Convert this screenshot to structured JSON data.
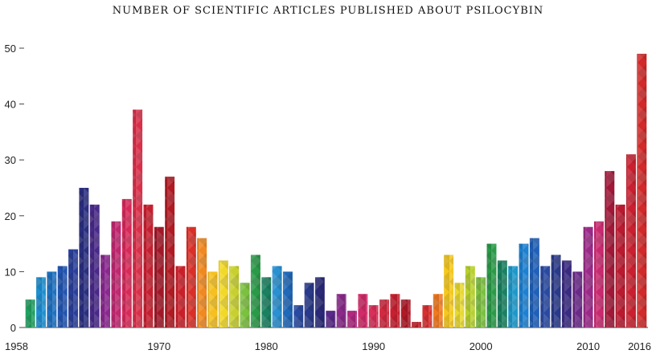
{
  "chart_data": {
    "type": "bar",
    "title": "NUMBER OF SCIENTIFIC ARTICLES PUBLISHED ABOUT PSILOCYBIN",
    "xlabel": "",
    "ylabel": "",
    "ylim": [
      0,
      50
    ],
    "yticks": [
      0,
      10,
      20,
      30,
      40,
      50
    ],
    "ytick_labels": [
      "0",
      "10",
      "20",
      "30",
      "40",
      "50"
    ],
    "xtick_labels": [
      "1958",
      "1970",
      "1980",
      "1990",
      "2000",
      "2010",
      "2016"
    ],
    "xtick_years": [
      1958,
      1970,
      1980,
      1990,
      2000,
      2010,
      2016
    ],
    "grid": false,
    "legend": "none",
    "bars": [
      {
        "x": 1958,
        "value": 5,
        "color": "#22a060"
      },
      {
        "x": 1959,
        "value": 9,
        "color": "#1e8fd0"
      },
      {
        "x": 1960,
        "value": 10,
        "color": "#1e70c0"
      },
      {
        "x": 1961,
        "value": 11,
        "color": "#2255b0"
      },
      {
        "x": 1962,
        "value": 14,
        "color": "#2a3f9a"
      },
      {
        "x": 1963,
        "value": 25,
        "color": "#2b2f80"
      },
      {
        "x": 1964,
        "value": 22,
        "color": "#4a2a88"
      },
      {
        "x": 1965,
        "value": 13,
        "color": "#8a2890"
      },
      {
        "x": 1966,
        "value": 19,
        "color": "#c02870"
      },
      {
        "x": 1967,
        "value": 23,
        "color": "#d62a5a"
      },
      {
        "x": 1968,
        "value": 39,
        "color": "#d8304a"
      },
      {
        "x": 1969,
        "value": 22,
        "color": "#c42030"
      },
      {
        "x": 1970,
        "value": 18,
        "color": "#a01828"
      },
      {
        "x": 1971,
        "value": 27,
        "color": "#b01a22"
      },
      {
        "x": 1972,
        "value": 11,
        "color": "#c8202a"
      },
      {
        "x": 1973,
        "value": 18,
        "color": "#d83028"
      },
      {
        "x": 1974,
        "value": 16,
        "color": "#f08a20"
      },
      {
        "x": 1975,
        "value": 10,
        "color": "#f5c020"
      },
      {
        "x": 1976,
        "value": 12,
        "color": "#f2d828"
      },
      {
        "x": 1977,
        "value": 11,
        "color": "#c8d030"
      },
      {
        "x": 1978,
        "value": 8,
        "color": "#7cc040"
      },
      {
        "x": 1979,
        "value": 13,
        "color": "#2a9a48"
      },
      {
        "x": 1980,
        "value": 9,
        "color": "#1a8060"
      },
      {
        "x": 1981,
        "value": 11,
        "color": "#2a90d0"
      },
      {
        "x": 1982,
        "value": 10,
        "color": "#2068b8"
      },
      {
        "x": 1983,
        "value": 4,
        "color": "#2a4aa0"
      },
      {
        "x": 1984,
        "value": 8,
        "color": "#2a3a8a"
      },
      {
        "x": 1985,
        "value": 9,
        "color": "#2a2a78"
      },
      {
        "x": 1986,
        "value": 3,
        "color": "#5a2a88"
      },
      {
        "x": 1987,
        "value": 6,
        "color": "#8a2a8a"
      },
      {
        "x": 1988,
        "value": 3,
        "color": "#b02880"
      },
      {
        "x": 1989,
        "value": 6,
        "color": "#d02a68"
      },
      {
        "x": 1990,
        "value": 4,
        "color": "#d83058"
      },
      {
        "x": 1991,
        "value": 5,
        "color": "#d02a40"
      },
      {
        "x": 1992,
        "value": 6,
        "color": "#c82030"
      },
      {
        "x": 1993,
        "value": 5,
        "color": "#b01a28"
      },
      {
        "x": 1994,
        "value": 1,
        "color": "#c02028"
      },
      {
        "x": 1995,
        "value": 4,
        "color": "#d83030"
      },
      {
        "x": 1996,
        "value": 6,
        "color": "#f07a20"
      },
      {
        "x": 1997,
        "value": 13,
        "color": "#f5c820"
      },
      {
        "x": 1998,
        "value": 8,
        "color": "#e8d830"
      },
      {
        "x": 1999,
        "value": 11,
        "color": "#b8d030"
      },
      {
        "x": 2000,
        "value": 9,
        "color": "#7cc040"
      },
      {
        "x": 2001,
        "value": 15,
        "color": "#2a9a48"
      },
      {
        "x": 2002,
        "value": 12,
        "color": "#1a8060"
      },
      {
        "x": 2003,
        "value": 11,
        "color": "#1e98c8"
      },
      {
        "x": 2004,
        "value": 15,
        "color": "#1e80d0"
      },
      {
        "x": 2005,
        "value": 16,
        "color": "#2060b8"
      },
      {
        "x": 2006,
        "value": 11,
        "color": "#2a4aa0"
      },
      {
        "x": 2007,
        "value": 13,
        "color": "#2a3a88"
      },
      {
        "x": 2008,
        "value": 12,
        "color": "#3a2a80"
      },
      {
        "x": 2009,
        "value": 10,
        "color": "#6a2a88"
      },
      {
        "x": 2010,
        "value": 18,
        "color": "#9a2a88"
      },
      {
        "x": 2011,
        "value": 19,
        "color": "#c82a70"
      },
      {
        "x": 2012,
        "value": 28,
        "color": "#a01838"
      },
      {
        "x": 2013,
        "value": 22,
        "color": "#b81a30"
      },
      {
        "x": 2014,
        "value": 31,
        "color": "#c82030"
      },
      {
        "x": 2015,
        "value": 49,
        "color": "#d02a2a"
      }
    ]
  }
}
